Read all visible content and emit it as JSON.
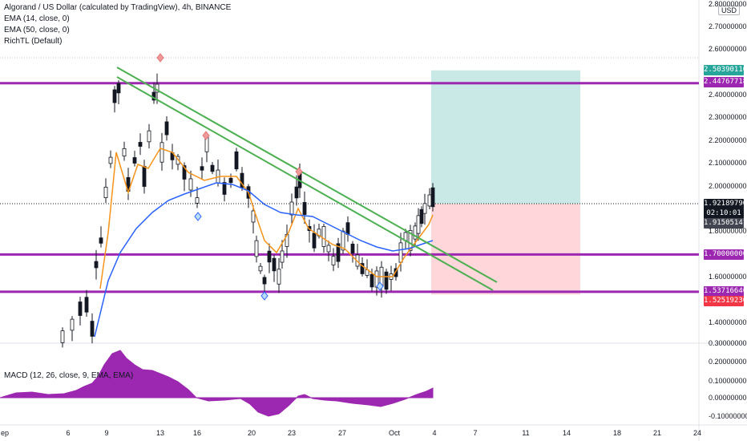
{
  "header": {
    "title": "Algorand / US Dollar (calculated by TradingView), 4h, BINANCE",
    "indicators": [
      "EMA (14, close, 0)",
      "EMA (50, close, 0)",
      "RichTL (Default)"
    ]
  },
  "macd_label": "MACD (12, 26, close, 9, EMA, EMA)",
  "currency": "USD",
  "price_axis": [
    "2.80000000",
    "2.70000000",
    "2.60000000",
    "2.40000000",
    "2.30000000",
    "2.20000000",
    "2.10000000",
    "2.00000000",
    "1.80000000",
    "1.60000000",
    "1.40000000",
    "0.30000000"
  ],
  "macd_axis": [
    "0.20000000",
    "0.10000000",
    "0.00000000",
    "-0.10000000000"
  ],
  "time_axis": [
    "ep",
    "6",
    "9",
    "13",
    "16",
    "20",
    "23",
    "27",
    "Oct",
    "4",
    "7",
    "11",
    "14",
    "18",
    "21",
    "24"
  ],
  "price_tags": [
    {
      "text": "2.50390110",
      "color": "#26a69a"
    },
    {
      "text": "2.44767718",
      "color": "#9c27b0"
    },
    {
      "text": "1.92189790",
      "color": "#131722"
    },
    {
      "text": "02:10:01",
      "color": "#131722"
    },
    {
      "text": "1.91505141",
      "color": "#434651"
    },
    {
      "text": "1.70000000",
      "color": "#9c27b0"
    },
    {
      "text": "1.53716640",
      "color": "#9c27b0"
    },
    {
      "text": "1.52519230",
      "color": "#f23645"
    }
  ],
  "colors": {
    "purple": "#9c27b0",
    "green_line": "#4caf50",
    "ema14": "#f7931a",
    "ema50": "#2962ff",
    "tp_zone": "#b2dfdb",
    "sl_zone": "#ffcdd2",
    "macd_fill": "#9c27b0"
  },
  "chart_data": {
    "type": "candlestick",
    "symbol": "ALGOUSD",
    "interval": "4h",
    "ylim": [
      1.3,
      2.8
    ],
    "x_ticks": [
      "6",
      "9",
      "13",
      "16",
      "20",
      "23",
      "27",
      "Oct",
      "4",
      "7",
      "11",
      "14",
      "18",
      "21",
      "24"
    ],
    "horizontal_levels": [
      2.44767718,
      1.7,
      1.5371664
    ],
    "position_zone": {
      "entry": 1.9218979,
      "take_profit": 2.5039011,
      "stop_loss": 1.5251923
    },
    "last_price": 1.9218979,
    "macd": {
      "ylim": [
        -0.12,
        0.3
      ]
    }
  }
}
